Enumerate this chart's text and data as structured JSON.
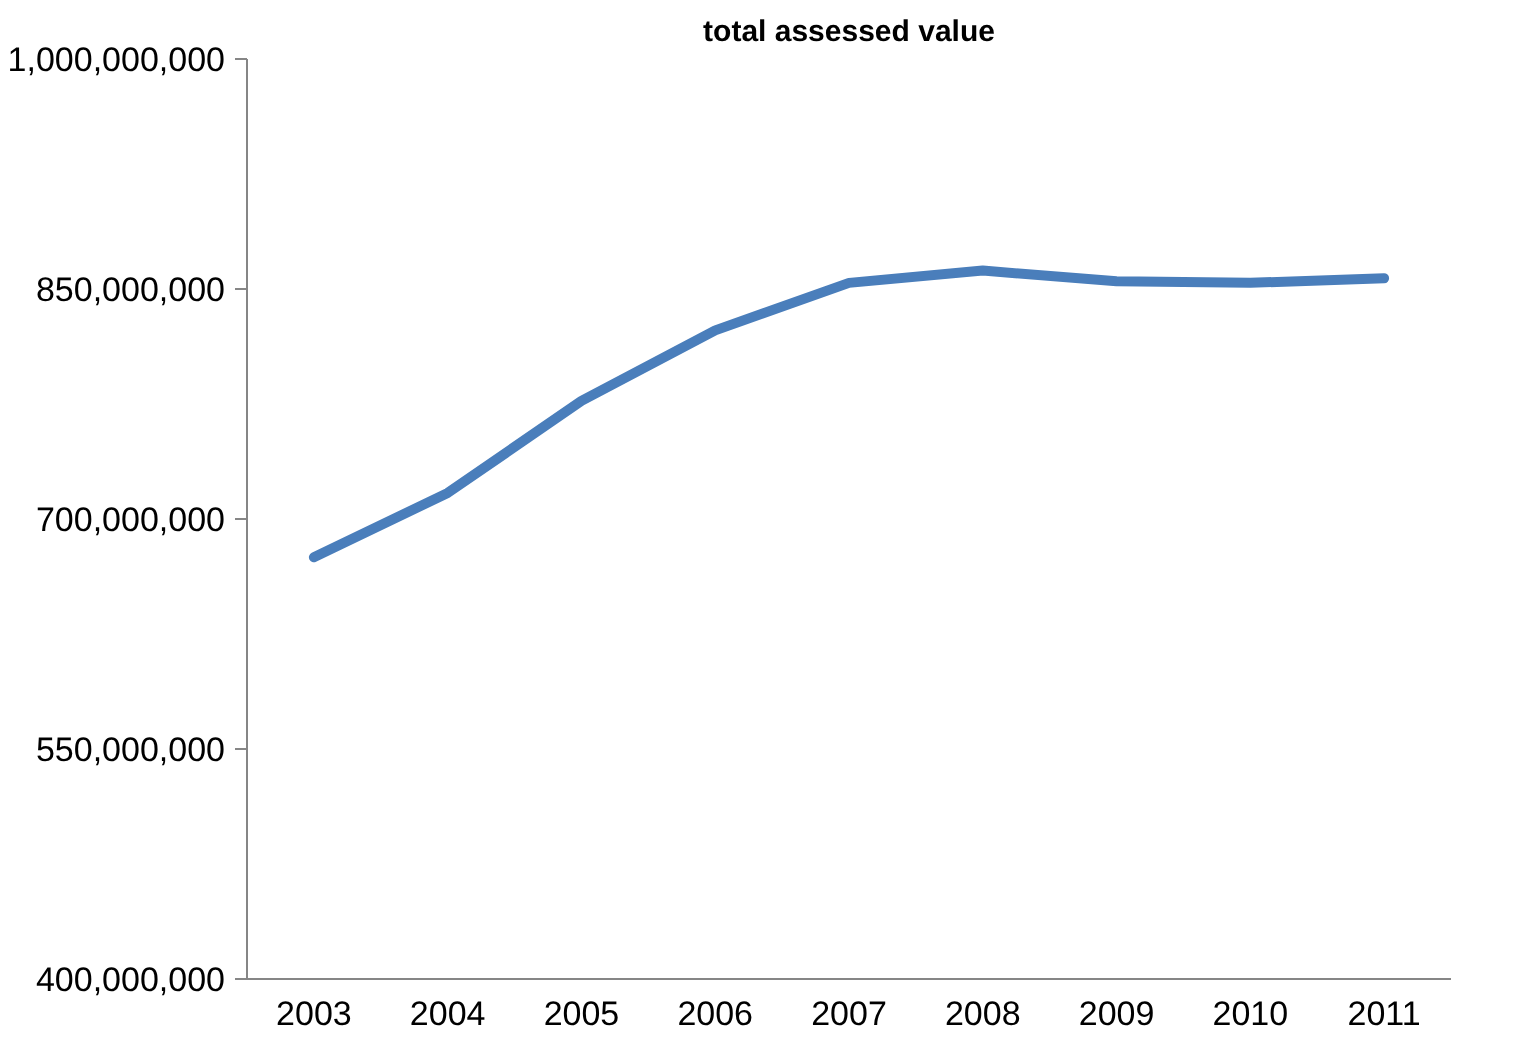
{
  "chart_data": {
    "type": "line",
    "title": "total assessed value",
    "categories": [
      "2003",
      "2004",
      "2005",
      "2006",
      "2007",
      "2008",
      "2009",
      "2010",
      "2011"
    ],
    "series": [
      {
        "color": "#4a7ebb",
        "values": [
          675000000,
          717000000,
          777000000,
          823000000,
          854000000,
          862000000,
          855000000,
          854000000,
          857000000
        ]
      }
    ],
    "ylim": [
      400000000,
      1000000000
    ],
    "yticks": [
      {
        "value": 400000000,
        "label": "400,000,000"
      },
      {
        "value": 550000000,
        "label": "550,000,000"
      },
      {
        "value": 700000000,
        "label": "700,000,000"
      },
      {
        "value": 850000000,
        "label": "850,000,000"
      },
      {
        "value": 1000000000,
        "label": "1,000,000,000"
      }
    ],
    "grid": false,
    "marker": "none",
    "line_style": "solid"
  }
}
